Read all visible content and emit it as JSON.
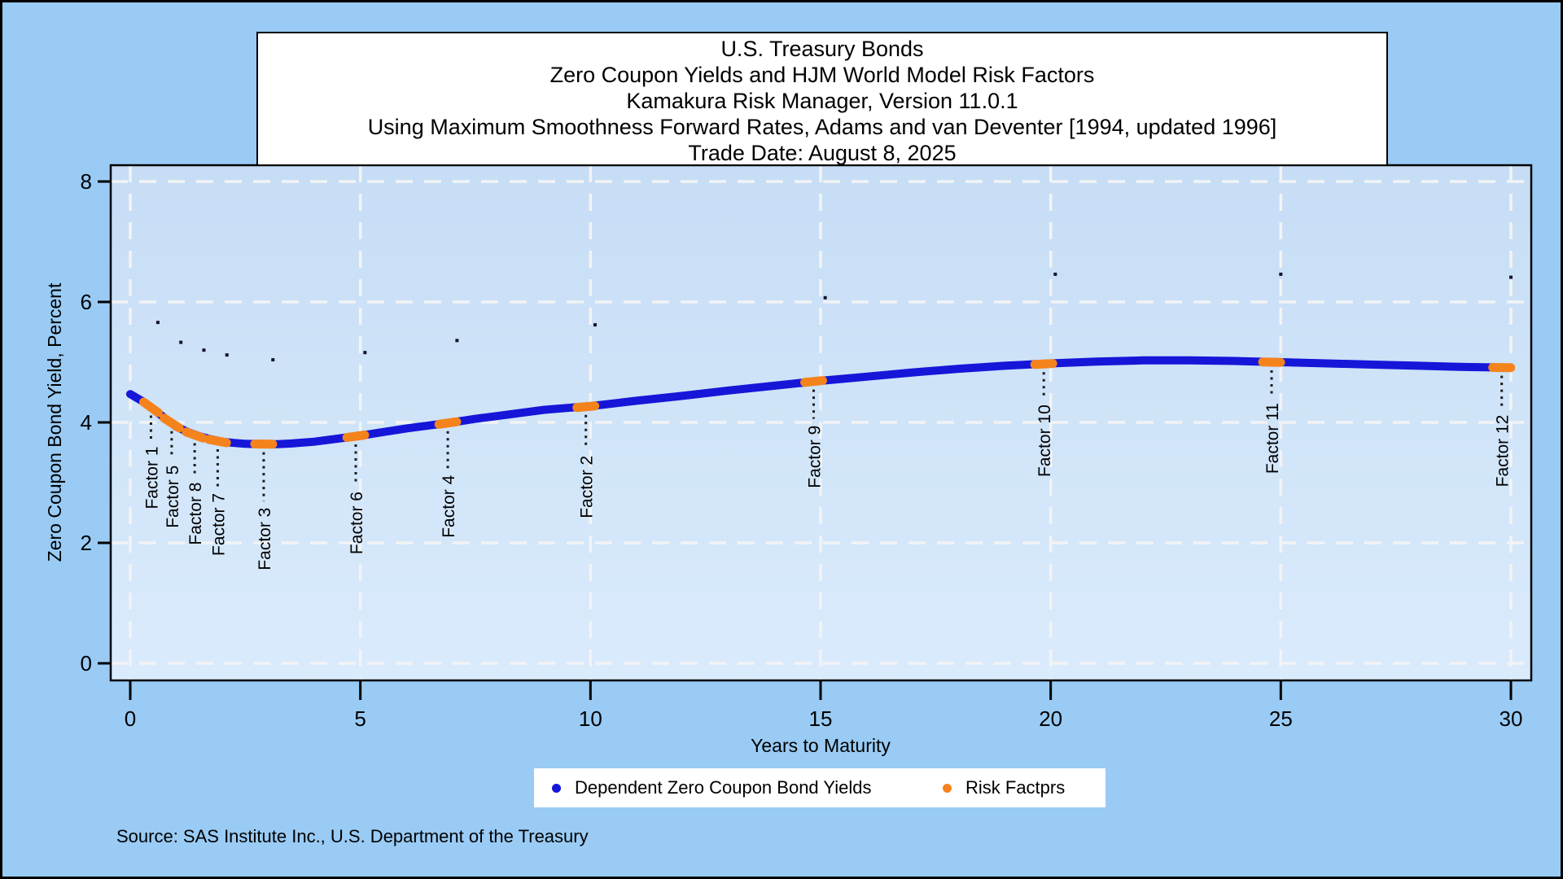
{
  "colors": {
    "outer_background": "#99cbf5",
    "plot_background_top": "#c6ddf5",
    "plot_background_bottom": "#daebfc",
    "gridline": "#f2f3f5",
    "curve_blue": "#1616d9",
    "factor_orange": "#f5831c",
    "observed_dot_dark": "#14142a",
    "box_background": "#ffffff",
    "border": "#000000"
  },
  "source_note": "Source: SAS Institute Inc., U.S. Department of the Treasury",
  "legend": {
    "items": [
      {
        "label": "Dependent Zero Coupon Bond Yields",
        "marker_color": "#1616d9"
      },
      {
        "label": "Risk Factprs",
        "marker_color": "#f5831c"
      }
    ]
  },
  "chart_data": {
    "type": "line",
    "title_lines": [
      "U.S. Treasury Bonds",
      "Zero Coupon Yields and HJM World Model Risk Factors",
      "Kamakura Risk Manager, Version 11.0.1",
      "Using Maximum Smoothness Forward Rates, Adams and van Deventer [1994, updated 1996]",
      "Trade Date: August 8, 2025"
    ],
    "xlabel": "Years to Maturity",
    "ylabel": "Zero Coupon Bond Yield, Percent",
    "xlim": [
      0,
      30
    ],
    "ylim": [
      0,
      8
    ],
    "x_ticks": [
      0,
      5,
      10,
      15,
      20,
      25,
      30
    ],
    "y_ticks": [
      0,
      2,
      4,
      6,
      8
    ],
    "grid": "white-dashed",
    "legend_position": "bottom",
    "curve": {
      "name": "Dependent Zero Coupon Bond Yields",
      "color": "#1616d9",
      "points": [
        [
          0,
          4.47
        ],
        [
          0.25,
          4.36
        ],
        [
          0.5,
          4.22
        ],
        [
          0.75,
          4.07
        ],
        [
          1,
          3.93
        ],
        [
          1.25,
          3.84
        ],
        [
          1.5,
          3.77
        ],
        [
          1.75,
          3.72
        ],
        [
          2,
          3.68
        ],
        [
          2.25,
          3.66
        ],
        [
          2.5,
          3.645
        ],
        [
          2.75,
          3.64
        ],
        [
          3,
          3.635
        ],
        [
          3.25,
          3.64
        ],
        [
          3.5,
          3.65
        ],
        [
          4,
          3.68
        ],
        [
          4.5,
          3.73
        ],
        [
          5,
          3.78
        ],
        [
          5.5,
          3.84
        ],
        [
          6,
          3.9
        ],
        [
          6.5,
          3.95
        ],
        [
          7,
          4.0
        ],
        [
          7.5,
          4.06
        ],
        [
          8,
          4.11
        ],
        [
          8.5,
          4.16
        ],
        [
          9,
          4.21
        ],
        [
          9.5,
          4.24
        ],
        [
          10,
          4.27
        ],
        [
          11,
          4.36
        ],
        [
          12,
          4.44
        ],
        [
          13,
          4.53
        ],
        [
          14,
          4.61
        ],
        [
          15,
          4.69
        ],
        [
          16,
          4.76
        ],
        [
          17,
          4.83
        ],
        [
          18,
          4.89
        ],
        [
          19,
          4.94
        ],
        [
          20,
          4.98
        ],
        [
          21,
          5.01
        ],
        [
          22,
          5.03
        ],
        [
          23,
          5.03
        ],
        [
          24,
          5.02
        ],
        [
          25,
          5.0
        ],
        [
          26,
          4.98
        ],
        [
          27,
          4.96
        ],
        [
          28,
          4.94
        ],
        [
          29,
          4.92
        ],
        [
          30,
          4.91
        ]
      ]
    },
    "risk_factors": {
      "name": "Risk Factprs",
      "color": "#f5831c",
      "points": [
        {
          "label": "Factor 1",
          "t": 0.45,
          "y": 4.25,
          "leader": 30
        },
        {
          "label": "Factor 5",
          "t": 0.9,
          "y": 3.99,
          "leader": 34
        },
        {
          "label": "Factor 8",
          "t": 1.4,
          "y": 3.79,
          "leader": 40
        },
        {
          "label": "Factor 7",
          "t": 1.9,
          "y": 3.69,
          "leader": 46
        },
        {
          "label": "Factor 3",
          "t": 2.9,
          "y": 3.64,
          "leader": 60
        },
        {
          "label": "Factor 6",
          "t": 4.9,
          "y": 3.77,
          "leader": 50
        },
        {
          "label": "Factor 4",
          "t": 6.9,
          "y": 3.99,
          "leader": 46
        },
        {
          "label": "Factor 2",
          "t": 9.9,
          "y": 4.26,
          "leader": 42
        },
        {
          "label": "Factor 9",
          "t": 14.85,
          "y": 4.68,
          "leader": 36
        },
        {
          "label": "Factor 10",
          "t": 19.85,
          "y": 4.97,
          "leader": 32
        },
        {
          "label": "Factor 11",
          "t": 24.8,
          "y": 5.0,
          "leader": 32
        },
        {
          "label": "Factor 12",
          "t": 29.8,
          "y": 4.91,
          "leader": 40
        }
      ]
    },
    "observed_points": {
      "color": "#14142a",
      "points": [
        [
          0.6,
          5.66
        ],
        [
          1.1,
          5.33
        ],
        [
          1.6,
          5.2
        ],
        [
          2.1,
          5.12
        ],
        [
          3.1,
          5.04
        ],
        [
          5.1,
          5.16
        ],
        [
          7.1,
          5.36
        ],
        [
          10.1,
          5.62
        ],
        [
          15.1,
          6.07
        ],
        [
          20.1,
          6.46
        ],
        [
          25.0,
          6.46
        ],
        [
          30.0,
          6.41
        ]
      ]
    }
  }
}
